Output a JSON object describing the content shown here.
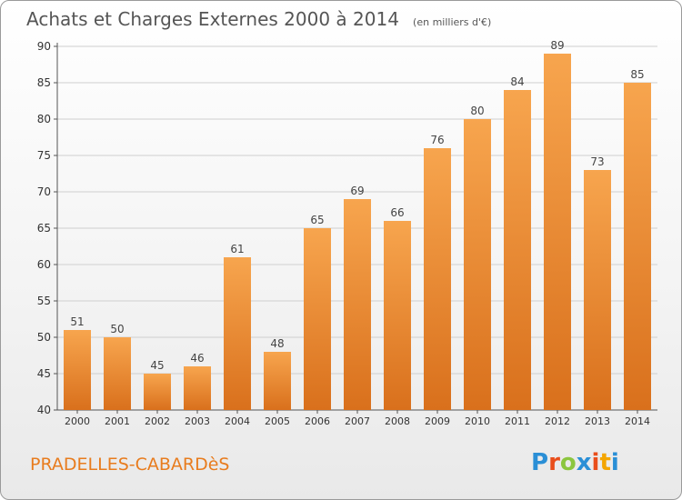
{
  "title": "Achats et Charges Externes 2000 à 2014",
  "unit": "(en milliers d'€)",
  "commune": "PRADELLES-CABARDèS",
  "logo": {
    "letters": [
      "P",
      "r",
      "o",
      "x",
      "i",
      "t",
      "i"
    ],
    "colors": [
      "#2a8fd6",
      "#e94e1b",
      "#8cc63f",
      "#2a8fd6",
      "#e94e1b",
      "#f4a500",
      "#2a8fd6"
    ]
  },
  "colors": {
    "bar_top": "#f7a54e",
    "bar_bottom": "#d9701c",
    "commune": "#e87c1e"
  },
  "chart_data": {
    "type": "bar",
    "categories": [
      "2000",
      "2001",
      "2002",
      "2003",
      "2004",
      "2005",
      "2006",
      "2007",
      "2008",
      "2009",
      "2010",
      "2011",
      "2012",
      "2013",
      "2014"
    ],
    "values": [
      51,
      50,
      45,
      46,
      61,
      48,
      65,
      69,
      66,
      76,
      80,
      84,
      89,
      73,
      85
    ],
    "ylim": [
      40,
      90
    ],
    "yticks": [
      40,
      45,
      50,
      55,
      60,
      65,
      70,
      75,
      80,
      85,
      90
    ],
    "grid": true,
    "data_labels": true
  }
}
